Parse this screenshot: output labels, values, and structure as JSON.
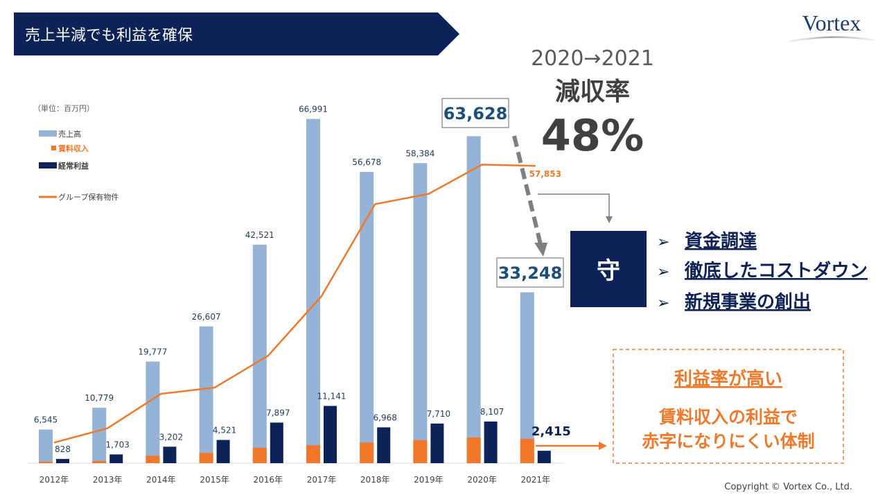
{
  "header": {
    "title": "売上半減でも利益を確保",
    "logo": "Vortex"
  },
  "footer": {
    "copyright": "Copyright © Vortex Co., Ltd."
  },
  "colors": {
    "navy": "#0d2257",
    "sales": "#95b3d7",
    "rent": "#f07828",
    "profit": "#0d2257",
    "line": "#f07828",
    "grey": "#7f7f7f",
    "blue_text": "#1f4e79"
  },
  "decline": {
    "period": "2020→2021",
    "label": "減収率",
    "rate": "48%",
    "from_value": "63,628",
    "to_value": "33,248"
  },
  "strategy": {
    "badge": "守",
    "bullet": "➢",
    "items": [
      "資金調達",
      "徹底したコストダウン",
      "新規事業の創出"
    ]
  },
  "callout": {
    "title": "利益率が高い",
    "line1": "賃料収入の利益で",
    "line2": "赤字になりにくい体制"
  },
  "chart_data": {
    "type": "bar",
    "unit_label": "（単位：百万円）",
    "categories": [
      "2012年",
      "2013年",
      "2014年",
      "2015年",
      "2016年",
      "2017年",
      "2018年",
      "2019年",
      "2020年",
      "2021年"
    ],
    "legend": [
      "売上高",
      "賃料収入",
      "経常利益",
      "グループ保有物件"
    ],
    "series": [
      {
        "name": "売上高",
        "type": "bar",
        "values": [
          6545,
          10779,
          19777,
          26607,
          42521,
          66991,
          56678,
          58384,
          63628,
          33248
        ],
        "labels": [
          "6,545",
          "10,779",
          "19,777",
          "26,607",
          "42,521",
          "66,991",
          "56,678",
          "58,384",
          "",
          ""
        ]
      },
      {
        "name": "賃料収入",
        "type": "bar",
        "values": [
          300,
          420,
          1450,
          2000,
          3000,
          3500,
          4000,
          4500,
          5000,
          4750
        ]
      },
      {
        "name": "経常利益",
        "type": "bar",
        "values": [
          828,
          1703,
          3202,
          4521,
          7897,
          11141,
          6968,
          7710,
          8107,
          2415
        ],
        "labels": [
          "828",
          "1,703",
          "3,202",
          "4,521",
          "7,897",
          "11,141",
          "6,968",
          "7,710",
          "8,107",
          "2,415"
        ]
      },
      {
        "name": "グループ保有物件",
        "type": "line",
        "values": [
          4000,
          6800,
          13500,
          14700,
          20900,
          32500,
          50400,
          52400,
          58100,
          57853
        ],
        "labels": [
          "",
          "",
          "",
          "",
          "",
          "",
          "",
          "",
          "",
          "57,853"
        ]
      }
    ],
    "ylim": [
      0,
      68000
    ],
    "grid": false,
    "legend_position": "top-left"
  }
}
